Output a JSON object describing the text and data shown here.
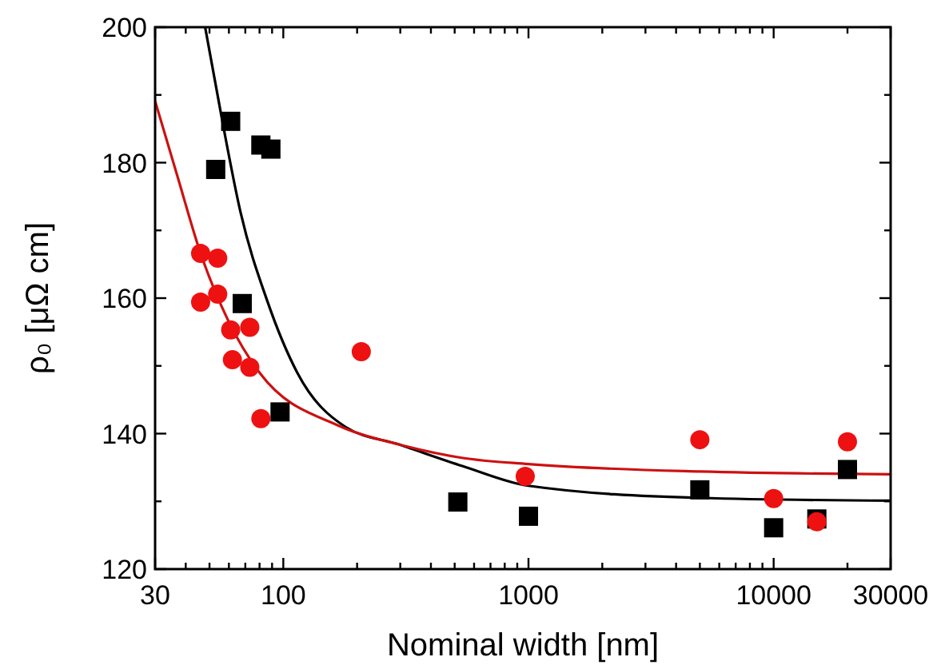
{
  "chart_data": {
    "type": "scatter",
    "xlabel": "Nominal width [nm]",
    "ylabel": "ρ₀ [μΩ cm]",
    "log": "x",
    "xlim": [
      30,
      30000
    ],
    "xticks": [
      30,
      {
        "value": 40,
        "label": null
      },
      {
        "value": 50,
        "label": null
      },
      {
        "value": 60,
        "label": null
      },
      {
        "value": 70,
        "label": null
      },
      {
        "value": 80,
        "label": null
      },
      {
        "value": 90,
        "label": null
      },
      100,
      {
        "value": 200,
        "label": null
      },
      {
        "value": 300,
        "label": null
      },
      {
        "value": 400,
        "label": null
      },
      {
        "value": 500,
        "label": null
      },
      {
        "value": 600,
        "label": null
      },
      {
        "value": 700,
        "label": null
      },
      {
        "value": 800,
        "label": null
      },
      {
        "value": 900,
        "label": null
      },
      1000,
      {
        "value": 2000,
        "label": null
      },
      {
        "value": 3000,
        "label": null
      },
      {
        "value": 4000,
        "label": null
      },
      {
        "value": 5000,
        "label": null
      },
      {
        "value": 6000,
        "label": null
      },
      {
        "value": 7000,
        "label": null
      },
      {
        "value": 8000,
        "label": null
      },
      {
        "value": 9000,
        "label": null
      },
      10000,
      {
        "value": 20000,
        "label": null
      },
      30000
    ],
    "ylim": [
      120,
      200
    ],
    "yticks": [
      120,
      {
        "value": 130,
        "label": null
      },
      140,
      {
        "value": 150,
        "label": null
      },
      160,
      {
        "value": 170,
        "label": null
      },
      180,
      {
        "value": 190,
        "label": null
      },
      200
    ],
    "grid": false,
    "series": [
      {
        "type": "scatter",
        "marker": "square",
        "color": "#000000",
        "x": [
          53,
          61,
          81,
          89,
          68,
          97,
          515,
          1000,
          5000,
          10000,
          15000,
          20000
        ],
        "values": [
          179,
          186.1,
          182.6,
          182,
          159.2,
          143.2,
          129.9,
          127.8,
          131.7,
          126.1,
          127.4,
          134.7
        ]
      },
      {
        "type": "scatter",
        "marker": "circle",
        "color": "#ee1111",
        "x": [
          46,
          54,
          46,
          54,
          61,
          73,
          62,
          73,
          81,
          208,
          970,
          5000,
          10000,
          15000,
          20000
        ],
        "values": [
          166.6,
          165.9,
          159.4,
          160.6,
          155.3,
          155.7,
          150.9,
          149.8,
          142.2,
          152.1,
          133.7,
          139.1,
          130.4,
          127,
          138.8
        ]
      },
      {
        "type": "line",
        "marker": "none",
        "line_style": "solid",
        "color": "#000000",
        "x": [
          48,
          56.5,
          67,
          86,
          114,
          179,
          296,
          540,
          1000,
          5000,
          30000
        ],
        "values": [
          200,
          186,
          172.6,
          159.6,
          149,
          141,
          138.4,
          135.2,
          132.3,
          130.5,
          130.1
        ]
      },
      {
        "type": "line",
        "marker": "none",
        "line_style": "solid",
        "color": "#cc1111",
        "x": [
          30,
          37,
          46,
          59.4,
          80,
          170,
          296,
          540,
          1000,
          5000,
          30000
        ],
        "values": [
          189.1,
          178,
          166.6,
          156.8,
          149,
          141.1,
          138.4,
          136.4,
          135.5,
          134.4,
          134
        ]
      }
    ]
  }
}
